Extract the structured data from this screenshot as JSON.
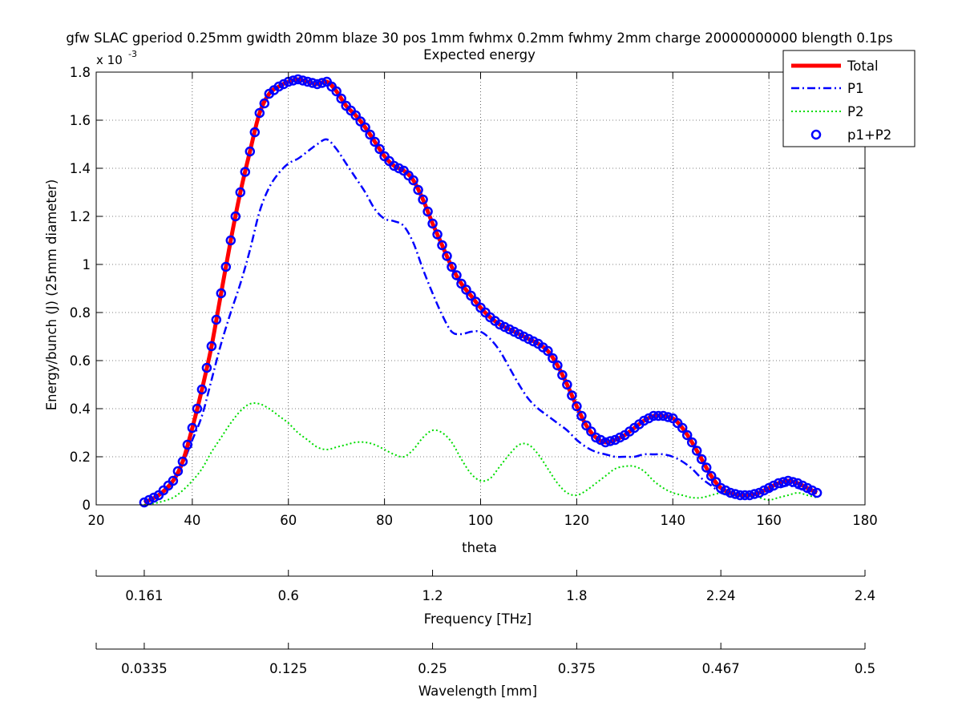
{
  "chart_data": {
    "type": "line",
    "title": "gfw SLAC gperiod 0.25mm gwidth 20mm blaze 30 pos 1mm fwhmx 0.2mm fwhmy 2mm charge 20000000000 blength 0.1ps",
    "subtitle": "Expected energy",
    "xlabel": "theta",
    "ylabel": "Energy/bunch (J)  (25mm diameter)",
    "y_exponent_label": "x 10",
    "y_exponent": "-3",
    "xlim": [
      20,
      180
    ],
    "ylim": [
      0,
      1.8
    ],
    "x_ticks": [
      "20",
      "40",
      "60",
      "80",
      "100",
      "120",
      "140",
      "160",
      "180"
    ],
    "y_ticks": [
      "0",
      "0.2",
      "0.4",
      "0.6",
      "0.8",
      "1",
      "1.2",
      "1.4",
      "1.6",
      "1.8"
    ],
    "grid": true,
    "legend_position": "top-right",
    "series": [
      {
        "name": "Total",
        "color": "#ff0000",
        "style": "solid-thick",
        "x": [
          30,
          33,
          36,
          38,
          40,
          42,
          44,
          46,
          48,
          50,
          52,
          54,
          56,
          58,
          60,
          62,
          64,
          66,
          68,
          70,
          72,
          74,
          76,
          78,
          80,
          82,
          84,
          86,
          88,
          90,
          92,
          94,
          96,
          98,
          100,
          102,
          104,
          106,
          108,
          110,
          112,
          114,
          116,
          118,
          120,
          122,
          124,
          126,
          128,
          130,
          132,
          134,
          136,
          138,
          140,
          142,
          144,
          146,
          148,
          150,
          152,
          154,
          156,
          158,
          160,
          162,
          164,
          166,
          168,
          170
        ],
        "y": [
          0.01,
          0.04,
          0.1,
          0.18,
          0.32,
          0.48,
          0.66,
          0.88,
          1.1,
          1.3,
          1.47,
          1.63,
          1.71,
          1.74,
          1.76,
          1.77,
          1.76,
          1.75,
          1.76,
          1.72,
          1.66,
          1.62,
          1.57,
          1.51,
          1.45,
          1.41,
          1.39,
          1.35,
          1.27,
          1.17,
          1.08,
          0.99,
          0.92,
          0.87,
          0.82,
          0.78,
          0.75,
          0.73,
          0.71,
          0.69,
          0.67,
          0.64,
          0.58,
          0.5,
          0.41,
          0.33,
          0.28,
          0.26,
          0.27,
          0.29,
          0.32,
          0.35,
          0.37,
          0.37,
          0.36,
          0.32,
          0.26,
          0.19,
          0.12,
          0.07,
          0.05,
          0.04,
          0.04,
          0.05,
          0.07,
          0.09,
          0.1,
          0.09,
          0.07,
          0.05
        ]
      },
      {
        "name": "P1",
        "color": "#0000ff",
        "style": "dash-dot",
        "x": [
          30,
          33,
          36,
          38,
          40,
          42,
          44,
          46,
          48,
          50,
          52,
          54,
          56,
          58,
          60,
          62,
          64,
          66,
          68,
          70,
          72,
          74,
          76,
          78,
          80,
          82,
          84,
          86,
          88,
          90,
          92,
          94,
          96,
          98,
          100,
          102,
          104,
          106,
          108,
          110,
          112,
          114,
          116,
          118,
          120,
          122,
          124,
          126,
          128,
          130,
          132,
          134,
          136,
          138,
          140,
          142,
          144,
          146,
          148,
          150,
          152,
          154,
          156,
          158,
          160,
          162,
          164,
          166,
          168,
          170
        ],
        "y": [
          0.01,
          0.04,
          0.1,
          0.17,
          0.27,
          0.37,
          0.52,
          0.67,
          0.8,
          0.92,
          1.06,
          1.22,
          1.32,
          1.38,
          1.42,
          1.44,
          1.47,
          1.5,
          1.52,
          1.48,
          1.42,
          1.36,
          1.3,
          1.23,
          1.19,
          1.18,
          1.16,
          1.09,
          0.98,
          0.88,
          0.79,
          0.72,
          0.71,
          0.72,
          0.72,
          0.69,
          0.64,
          0.57,
          0.5,
          0.44,
          0.4,
          0.37,
          0.34,
          0.31,
          0.27,
          0.24,
          0.22,
          0.21,
          0.2,
          0.2,
          0.2,
          0.21,
          0.21,
          0.21,
          0.2,
          0.18,
          0.15,
          0.11,
          0.08,
          0.05,
          0.04,
          0.04,
          0.04,
          0.05,
          0.06,
          0.07,
          0.08,
          0.07,
          0.06,
          0.05
        ]
      },
      {
        "name": "P2",
        "color": "#00dd00",
        "style": "dotted",
        "x": [
          30,
          33,
          36,
          38,
          40,
          42,
          44,
          46,
          48,
          50,
          52,
          54,
          56,
          58,
          60,
          62,
          64,
          66,
          68,
          70,
          72,
          74,
          76,
          78,
          80,
          82,
          84,
          86,
          88,
          90,
          92,
          94,
          96,
          98,
          100,
          102,
          104,
          106,
          108,
          110,
          112,
          114,
          116,
          118,
          120,
          122,
          124,
          126,
          128,
          130,
          132,
          134,
          136,
          138,
          140,
          142,
          144,
          146,
          148,
          150,
          152,
          154,
          156,
          158,
          160,
          162,
          164,
          166,
          168,
          170
        ],
        "y": [
          0.0,
          0.01,
          0.03,
          0.06,
          0.1,
          0.15,
          0.22,
          0.28,
          0.34,
          0.39,
          0.42,
          0.42,
          0.4,
          0.37,
          0.34,
          0.3,
          0.27,
          0.24,
          0.23,
          0.24,
          0.25,
          0.26,
          0.26,
          0.25,
          0.23,
          0.21,
          0.2,
          0.23,
          0.28,
          0.31,
          0.3,
          0.26,
          0.19,
          0.13,
          0.1,
          0.11,
          0.16,
          0.21,
          0.25,
          0.25,
          0.21,
          0.15,
          0.09,
          0.05,
          0.04,
          0.06,
          0.09,
          0.12,
          0.15,
          0.16,
          0.16,
          0.14,
          0.1,
          0.07,
          0.05,
          0.04,
          0.03,
          0.03,
          0.04,
          0.05,
          0.05,
          0.05,
          0.04,
          0.03,
          0.02,
          0.03,
          0.04,
          0.05,
          0.04,
          0.03
        ]
      },
      {
        "name": "p1+P2",
        "color": "#0000ff",
        "style": "circle-markers",
        "x_range": [
          30,
          170
        ],
        "marker_step": 1
      }
    ],
    "secondary_axes": [
      {
        "label": "Frequency [THz]",
        "tick_labels": [
          "0.161",
          "0.6",
          "1.2",
          "1.8",
          "2.24",
          "2.4"
        ],
        "tick_positions_theta": [
          30,
          60,
          90,
          120,
          150,
          180
        ]
      },
      {
        "label": "Wavelength [mm]",
        "tick_labels": [
          "0.0335",
          "0.125",
          "0.25",
          "0.375",
          "0.467",
          "0.5"
        ],
        "tick_positions_theta": [
          30,
          60,
          90,
          120,
          150,
          180
        ]
      }
    ]
  }
}
